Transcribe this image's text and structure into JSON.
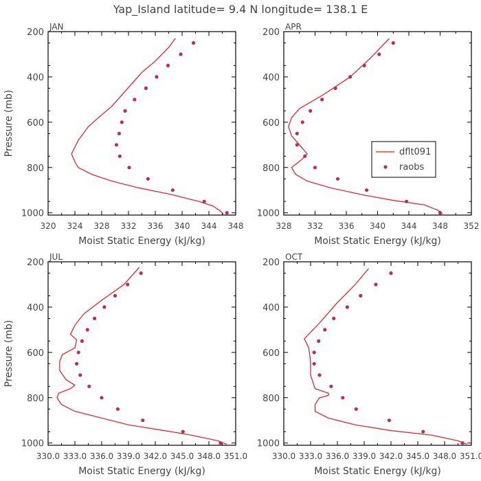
{
  "page": {
    "title": "Yap_Island  latitude= 9.4 N longitude= 138.1 E"
  },
  "legend": {
    "model_label": "dflt091",
    "obs_label": "raobs",
    "panel": "APR"
  },
  "colors": {
    "model": "#e8171d",
    "obs": "#b5315a",
    "axis": "#000000",
    "text": "#444444"
  },
  "chart_data": [
    {
      "type": "line",
      "panel": "JAN",
      "xlabel": "Moist Static Energy (kJ/kg)",
      "ylabel": "Pressure (mb)",
      "xlim": [
        320,
        348
      ],
      "ylim": [
        1010,
        200
      ],
      "xticks": [
        320,
        324,
        328,
        332,
        336,
        340,
        344,
        348
      ],
      "xtick_labels": [
        "320",
        "324",
        "328",
        "332",
        "336",
        "340",
        "344",
        "348"
      ],
      "yticks": [
        200,
        400,
        600,
        800,
        1000
      ],
      "ytick_labels": [
        "200",
        "400",
        "600",
        "800",
        "1000"
      ],
      "series": [
        {
          "name": "dflt091",
          "kind": "line",
          "x": [
            346.2,
            345.6,
            344.6,
            342.5,
            338.5,
            333.5,
            329.5,
            326.5,
            324.5,
            324.0,
            323.5,
            324.5,
            326.0,
            327.5,
            329.5,
            331.0,
            332.5,
            334.0,
            336.0,
            338.0,
            339.0
          ],
          "y": [
            1005,
            990,
            970,
            950,
            920,
            890,
            860,
            830,
            800,
            775,
            740,
            680,
            620,
            580,
            530,
            480,
            430,
            380,
            330,
            270,
            230
          ]
        },
        {
          "name": "raobs",
          "kind": "points",
          "x": [
            346.7,
            343.3,
            338.6,
            334.9,
            332.1,
            330.7,
            330.2,
            330.6,
            331.0,
            331.5,
            332.9,
            334.6,
            336.2,
            337.9,
            339.8,
            341.7
          ],
          "y": [
            1000,
            950,
            900,
            850,
            800,
            750,
            700,
            650,
            600,
            550,
            500,
            450,
            400,
            350,
            300,
            250
          ]
        }
      ]
    },
    {
      "type": "line",
      "panel": "APR",
      "xlabel": "Moist Static Energy (kJ/kg)",
      "ylabel": "",
      "xlim": [
        328,
        352
      ],
      "ylim": [
        1010,
        200
      ],
      "xticks": [
        328,
        332,
        336,
        340,
        344,
        348,
        352
      ],
      "xtick_labels": [
        "328",
        "332",
        "336",
        "340",
        "344",
        "348",
        "352"
      ],
      "yticks": [
        200,
        400,
        600,
        800,
        1000
      ],
      "ytick_labels": [
        "200",
        "400",
        "600",
        "800",
        "1000"
      ],
      "series": [
        {
          "name": "dflt091",
          "kind": "line",
          "x": [
            348.3,
            347.8,
            346.0,
            342.0,
            338.0,
            334.0,
            331.0,
            329.5,
            329.0,
            330.3,
            331.0,
            330.0,
            329.0,
            328.6,
            329.0,
            330.0,
            333.0,
            336.5,
            339.0,
            341.5
          ],
          "y": [
            1005,
            990,
            965,
            945,
            920,
            890,
            860,
            830,
            800,
            765,
            740,
            700,
            660,
            620,
            580,
            540,
            480,
            400,
            320,
            230
          ]
        },
        {
          "name": "raobs",
          "kind": "points",
          "x": [
            348.0,
            343.7,
            338.6,
            334.9,
            332.0,
            330.7,
            329.7,
            329.7,
            330.4,
            331.4,
            332.9,
            334.6,
            336.5,
            338.3,
            340.2,
            342.0
          ],
          "y": [
            1000,
            950,
            900,
            850,
            800,
            750,
            700,
            650,
            600,
            550,
            500,
            450,
            400,
            350,
            300,
            250
          ]
        }
      ]
    },
    {
      "type": "line",
      "panel": "JUL",
      "xlabel": "Moist Static Energy (kJ/kg)",
      "ylabel": "Pressure (mb)",
      "xlim": [
        330.0,
        351.0
      ],
      "ylim": [
        1010,
        200
      ],
      "xticks": [
        330.0,
        333.0,
        336.0,
        339.0,
        342.0,
        345.0,
        348.0,
        351.0
      ],
      "xtick_labels": [
        "330.0",
        "333.0",
        "336.0",
        "339.0",
        "342.0",
        "345.0",
        "348.0",
        "351.0"
      ],
      "yticks": [
        200,
        400,
        600,
        800,
        1000
      ],
      "ytick_labels": [
        "200",
        "400",
        "600",
        "800",
        "1000"
      ],
      "series": [
        {
          "name": "dflt091",
          "kind": "line",
          "x": [
            350.0,
            349.0,
            346.0,
            343.0,
            339.0,
            336.0,
            333.0,
            331.5,
            331.0,
            331.2,
            332.5,
            333.0,
            332.0,
            331.3,
            331.3,
            331.6,
            333.0,
            333.2,
            332.5,
            333.0,
            334.0,
            336.0,
            338.5,
            340.2
          ],
          "y": [
            1005,
            990,
            965,
            945,
            920,
            890,
            860,
            830,
            800,
            780,
            760,
            745,
            720,
            680,
            640,
            610,
            580,
            545,
            520,
            480,
            430,
            370,
            300,
            225
          ]
        },
        {
          "name": "raobs",
          "kind": "points",
          "x": [
            349.3,
            345.1,
            340.6,
            337.8,
            336.0,
            334.6,
            333.6,
            333.2,
            333.4,
            333.8,
            334.4,
            335.2,
            336.3,
            337.5,
            338.9,
            340.4
          ],
          "y": [
            1000,
            950,
            900,
            850,
            800,
            750,
            700,
            650,
            600,
            550,
            500,
            450,
            400,
            350,
            300,
            250
          ]
        }
      ]
    },
    {
      "type": "line",
      "panel": "OCT",
      "xlabel": "Moist Static Energy (kJ/kg)",
      "ylabel": "",
      "xlim": [
        330.0,
        351.0
      ],
      "ylim": [
        1010,
        200
      ],
      "xticks": [
        330.0,
        333.0,
        336.0,
        339.0,
        342.0,
        345.0,
        348.0,
        351.0
      ],
      "xtick_labels": [
        "330.0",
        "333.0",
        "336.0",
        "339.0",
        "342.0",
        "345.0",
        "348.0",
        "351.0"
      ],
      "yticks": [
        200,
        400,
        600,
        800,
        1000
      ],
      "ytick_labels": [
        "200",
        "400",
        "600",
        "800",
        "1000"
      ],
      "series": [
        {
          "name": "dflt091",
          "kind": "line",
          "x": [
            350.5,
            349.5,
            346.5,
            342.0,
            338.0,
            335.0,
            333.5,
            333.5,
            334.0,
            335.0,
            335.0,
            333.5,
            333.0,
            333.0,
            332.8,
            332.3,
            334.0,
            336.0,
            338.0,
            339.5
          ],
          "y": [
            1005,
            990,
            965,
            945,
            920,
            890,
            860,
            830,
            800,
            790,
            780,
            760,
            700,
            640,
            580,
            540,
            470,
            380,
            300,
            230
          ]
        },
        {
          "name": "raobs",
          "kind": "points",
          "x": [
            350.0,
            345.6,
            341.8,
            338.1,
            336.6,
            335.3,
            334.0,
            333.4,
            333.4,
            333.9,
            334.6,
            335.6,
            337.1,
            338.6,
            340.3,
            342.0
          ],
          "y": [
            1000,
            950,
            900,
            850,
            800,
            750,
            700,
            650,
            600,
            550,
            500,
            450,
            400,
            350,
            300,
            250
          ]
        }
      ]
    }
  ]
}
